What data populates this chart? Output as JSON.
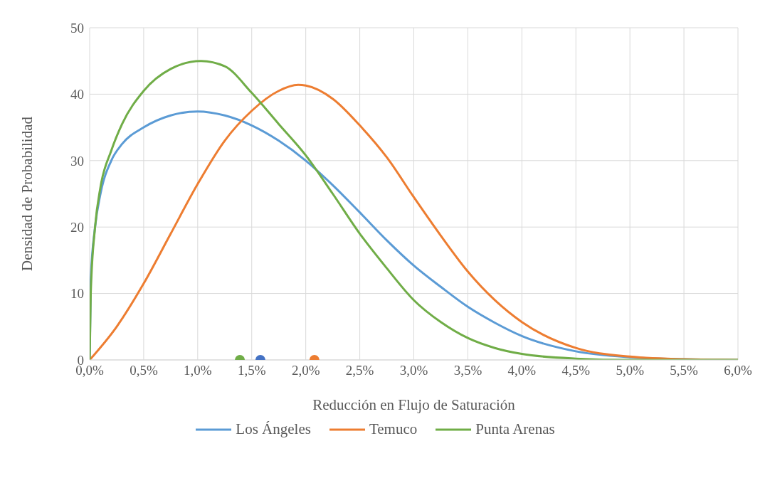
{
  "chart_data": {
    "type": "line",
    "xlabel": "Reducción en Flujo de Saturación",
    "ylabel": "Densidad de Probabilidad",
    "xlim": [
      0,
      0.06
    ],
    "ylim": [
      0,
      50
    ],
    "xticks": [
      {
        "value": 0,
        "label": "0,0%"
      },
      {
        "value": 0.005,
        "label": "0,5%"
      },
      {
        "value": 0.01,
        "label": "1,0%"
      },
      {
        "value": 0.015,
        "label": "1,5%"
      },
      {
        "value": 0.02,
        "label": "2,0%"
      },
      {
        "value": 0.025,
        "label": "2,5%"
      },
      {
        "value": 0.03,
        "label": "3,0%"
      },
      {
        "value": 0.035,
        "label": "3,5%"
      },
      {
        "value": 0.04,
        "label": "4,0%"
      },
      {
        "value": 0.045,
        "label": "4,5%"
      },
      {
        "value": 0.05,
        "label": "5,0%"
      },
      {
        "value": 0.055,
        "label": "5,5%"
      },
      {
        "value": 0.06,
        "label": "6,0%"
      }
    ],
    "yticks": [
      0,
      10,
      20,
      30,
      40,
      50
    ],
    "grid": true,
    "legend": "bottom",
    "marker": "none",
    "line_style": "solid",
    "series": [
      {
        "name": "Los Ángeles",
        "color": "#5b9bd5",
        "x": [
          0,
          0.0001,
          0.0005,
          0.001,
          0.002,
          0.003,
          0.005,
          0.0075,
          0.01,
          0.0125,
          0.015,
          0.0175,
          0.02,
          0.0225,
          0.025,
          0.0275,
          0.03,
          0.0325,
          0.035,
          0.0375,
          0.04,
          0.045,
          0.05,
          0.055,
          0.06
        ],
        "values": [
          0,
          12,
          20,
          25,
          30,
          32.5,
          35,
          36.8,
          37.4,
          36.8,
          35.3,
          33,
          30,
          26.3,
          22.2,
          18,
          14.2,
          11,
          8,
          5.6,
          3.6,
          1.3,
          0.4,
          0.1,
          0
        ]
      },
      {
        "name": "Temuco",
        "color": "#ed7d31",
        "x": [
          0,
          0.0025,
          0.005,
          0.0075,
          0.01,
          0.0125,
          0.015,
          0.0175,
          0.0193,
          0.02,
          0.0225,
          0.025,
          0.0275,
          0.03,
          0.0325,
          0.035,
          0.0375,
          0.04,
          0.045,
          0.05,
          0.055,
          0.06
        ],
        "values": [
          0,
          5,
          11.5,
          19,
          26.5,
          33,
          37.5,
          40.5,
          41.4,
          41.3,
          39.3,
          35.3,
          30.5,
          24.5,
          18.7,
          13.3,
          9,
          5.7,
          1.8,
          0.5,
          0.1,
          0
        ]
      },
      {
        "name": "Punta Arenas",
        "color": "#70ad47",
        "x": [
          0,
          0.0001,
          0.0005,
          0.001,
          0.002,
          0.003,
          0.005,
          0.0075,
          0.0103,
          0.0125,
          0.015,
          0.0175,
          0.02,
          0.0225,
          0.025,
          0.0275,
          0.03,
          0.0325,
          0.035,
          0.0375,
          0.04,
          0.045,
          0.05,
          0.06
        ],
        "values": [
          0,
          10,
          20,
          26,
          31.5,
          35.5,
          40.5,
          43.8,
          45,
          44.2,
          40.2,
          35.5,
          30.8,
          25,
          19,
          13.8,
          9,
          5.7,
          3.3,
          1.8,
          0.9,
          0.2,
          0,
          0
        ]
      },
      {
        "type": "scatter",
        "marker": "circle",
        "color": "#70ad47",
        "x": [
          0.0139
        ],
        "values": [
          0
        ]
      },
      {
        "type": "scatter",
        "marker": "circle",
        "color": "#4472c4",
        "x": [
          0.0158
        ],
        "values": [
          0
        ]
      },
      {
        "type": "scatter",
        "marker": "circle",
        "color": "#ed7d31",
        "x": [
          0.0208
        ],
        "values": [
          0
        ]
      }
    ]
  }
}
